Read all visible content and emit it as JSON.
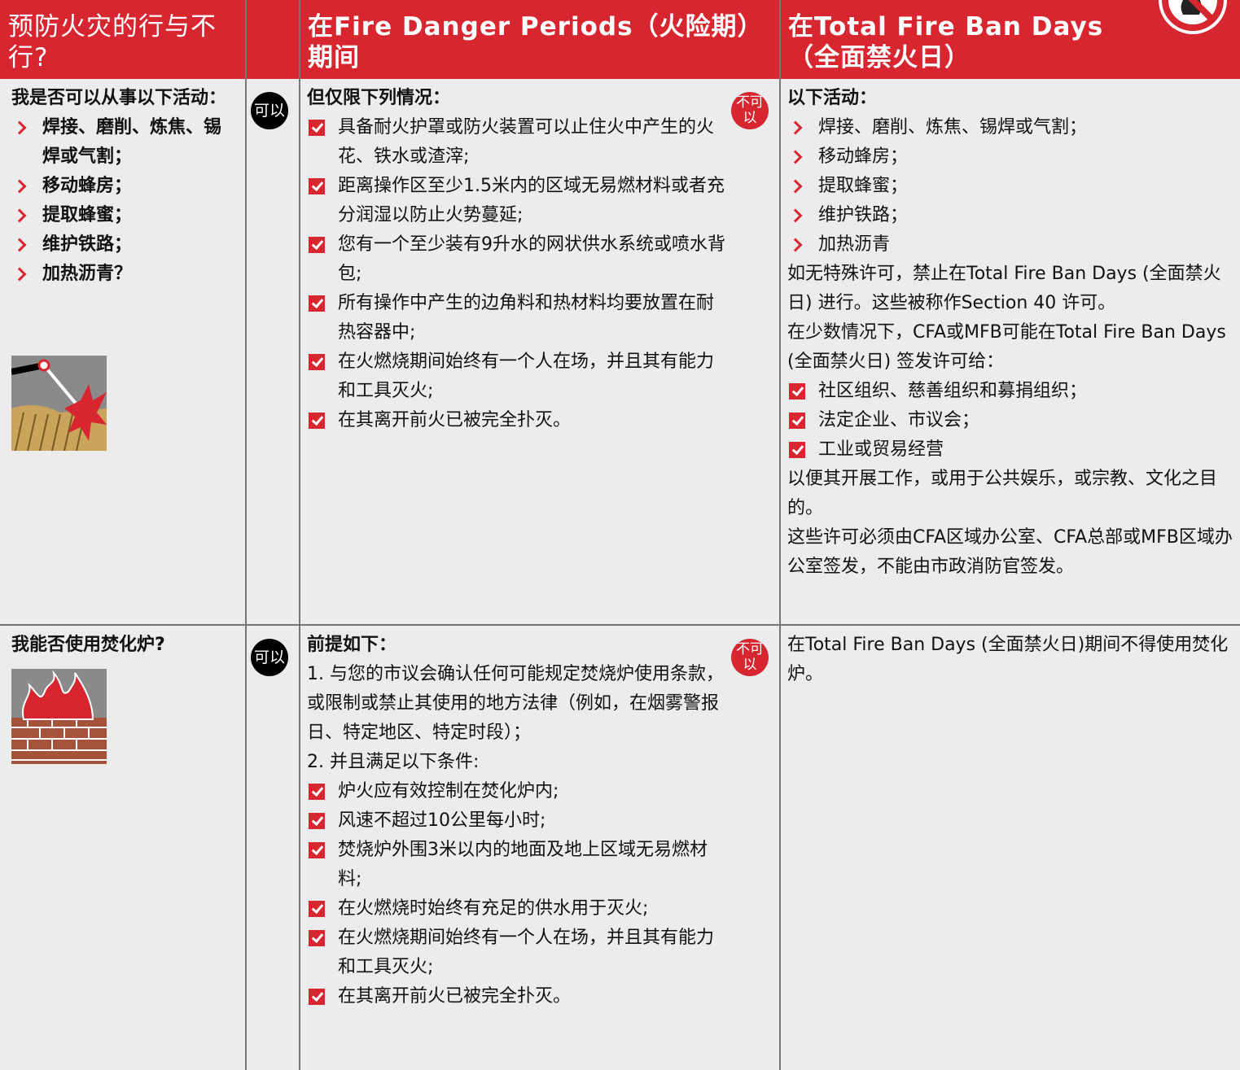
{
  "header": {
    "col1": "预防火灾的行与不行?",
    "col2": "在Fire Danger Periods（火险期）期间",
    "col3": "在Total Fire Ban Days（全面禁火日）"
  },
  "rows": [
    {
      "question": {
        "heading": "我是否可以从事以下活动：",
        "bullets": [
          "焊接、磨削、炼焦、锡焊或气割；",
          "移动蜂房；",
          "提取蜂蜜；",
          "维护铁路；",
          "加热沥青？"
        ]
      },
      "can_badge": "可以",
      "allowed": [
        {
          "heading": "但仅限下列情况："
        },
        {
          "checks": [
            "具备耐火护罩或防火装置可以止住火中产生的火花、铁水或渣滓;",
            "距离操作区至少1.5米内的区域无易燃材料或者充分润湿以防止火势蔓延;",
            "您有一个至少装有9升水的网状供水系统或喷水背包;",
            "所有操作中产生的边角料和热材料均要放置在耐热容器中;",
            "在火燃烧期间始终有一个人在场，并且其有能力和工具灭火;",
            "在其离开前火已被完全扑灭。"
          ]
        }
      ],
      "cannot_badge": "不可以",
      "banned": [
        {
          "heading": "以下活动："
        },
        {
          "bullets": [
            "焊接、磨削、炼焦、锡焊或气割；",
            "移动蜂房；",
            "提取蜂蜜；",
            "维护铁路；",
            "加热沥青"
          ]
        },
        {
          "text": "如无特殊许可，禁止在Total Fire Ban Days (全面禁火日) 进行。这些被称作Section 40 许可。"
        },
        {
          "text": "在少数情况下，CFA或MFB可能在Total Fire Ban Days (全面禁火日) 签发许可给："
        },
        {
          "checks": [
            "社区组织、慈善组织和募捐组织；",
            "法定企业、市议会；",
            "工业或贸易经营"
          ]
        },
        {
          "text": "以便其开展工作，或用于公共娱乐，或宗教、文化之目的。"
        },
        {
          "text": "这些许可必须由CFA区域办公室、CFA总部或MFB区域办公室签发，不能由市政消防官签发。"
        }
      ]
    },
    {
      "question": {
        "heading": "我能否使用焚化炉?"
      },
      "can_badge": "可以",
      "allowed": [
        {
          "heading": "前提如下："
        },
        {
          "text": "1. 与您的市议会确认任何可能规定焚烧炉使用条款，或限制或禁止其使用的地方法律（例如，在烟雾警报日、特定地区、特定时段）；"
        },
        {
          "text": "2. 并且满足以下条件:"
        },
        {
          "checks": [
            "炉火应有效控制在焚化炉内;",
            "风速不超过10公里每小时;",
            "焚烧炉外围3米以内的地面及地上区域无易燃材料;",
            "在火燃烧时始终有充足的供水用于灭火;",
            "在火燃烧期间始终有一个人在场，并且其有能力和工具灭火;",
            "在其离开前火已被完全扑灭。"
          ]
        }
      ],
      "cannot_badge": "不可以",
      "banned": [
        {
          "text": "在Total Fire Ban Days (全面禁火日)期间不得使用焚化炉。"
        }
      ]
    }
  ]
}
